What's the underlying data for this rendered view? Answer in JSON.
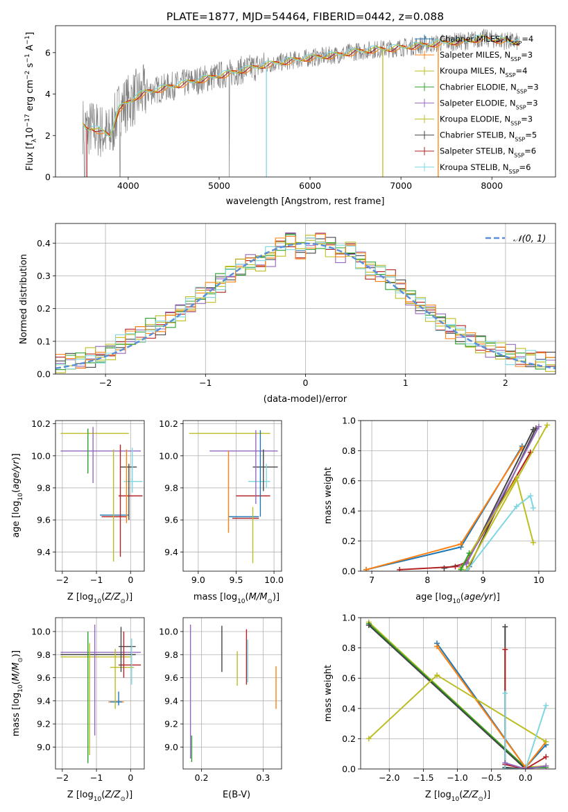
{
  "figure": {
    "title": "PLATE=1877, MJD=54464, FIBERID=0442, z=0.088"
  },
  "palette": {
    "fit_colors": [
      "#1f77b4",
      "#ff7f0e",
      "#bcbd22",
      "#2ca02c",
      "#9467bd",
      "#bcbd22",
      "#444444",
      "#b22222",
      "#7ed6e0"
    ],
    "normal_line": "#5b8fd9",
    "axis": "#000000",
    "grid": "#b0b0b0",
    "spectrum": "#808080"
  },
  "chart_data": [
    {
      "id": "spectrum",
      "type": "line",
      "xlabel": "wavelength [Angstrom, rest frame]",
      "ylabel": "Flux [f_λ 10^-17 erg cm^-2 s^-1 A^-1]",
      "xlim": [
        3200,
        8700
      ],
      "ylim": [
        0,
        7.3
      ],
      "xticks": [
        4000,
        5000,
        6000,
        7000,
        8000
      ],
      "yticks": [
        0,
        2,
        4,
        6
      ],
      "grid": false,
      "legend_position": "top-right",
      "continuum": {
        "x": [
          3500,
          3550,
          3600,
          3700,
          3800,
          3900,
          4000,
          4100,
          4200,
          4300,
          4500,
          4700,
          4900,
          5100,
          5300,
          5500,
          5700,
          5900,
          6100,
          6300,
          6500,
          6700,
          6900,
          7100,
          7300,
          7500,
          7700,
          7900,
          8100,
          8300
        ],
        "y": [
          2.5,
          2.3,
          2.4,
          2.2,
          2.0,
          3.3,
          3.6,
          3.9,
          4.1,
          4.2,
          4.4,
          4.6,
          4.8,
          5.0,
          5.2,
          5.4,
          5.55,
          5.7,
          5.8,
          5.9,
          6.05,
          6.15,
          6.2,
          6.3,
          6.4,
          6.5,
          6.55,
          6.7,
          6.6,
          6.5
        ]
      },
      "series": [
        {
          "name": "Chabrier MILES, N_SSP=4",
          "label_main": "Chabrier MILES, N",
          "label_sub": "SSP",
          "label_tail": "=4"
        },
        {
          "name": "Salpeter MILES, N_SSP=3",
          "label_main": "Salpeter MILES, N",
          "label_sub": "SSP",
          "label_tail": "=3"
        },
        {
          "name": "Kroupa MILES, N_SSP=4",
          "label_main": "Kroupa MILES, N",
          "label_sub": "SSP",
          "label_tail": "=4"
        },
        {
          "name": "Chabrier ELODIE, N_SSP=3",
          "label_main": "Chabrier ELODIE, N",
          "label_sub": "SSP",
          "label_tail": "=3"
        },
        {
          "name": "Salpeter ELODIE, N_SSP=3",
          "label_main": "Salpeter ELODIE, N",
          "label_sub": "SSP",
          "label_tail": "=3"
        },
        {
          "name": "Kroupa ELODIE, N_SSP=3",
          "label_main": "Kroupa ELODIE, N",
          "label_sub": "SSP",
          "label_tail": "=3"
        },
        {
          "name": "Chabrier STELIB, N_SSP=5",
          "label_main": "Chabrier STELIB, N",
          "label_sub": "SSP",
          "label_tail": "=5"
        },
        {
          "name": "Salpeter STELIB, N_SSP=6",
          "label_main": "Salpeter STELIB, N",
          "label_sub": "SSP",
          "label_tail": "=6"
        },
        {
          "name": "Kroupa STELIB, N_SSP=6",
          "label_main": "Kroupa STELIB, N",
          "label_sub": "SSP",
          "label_tail": "=6"
        }
      ]
    },
    {
      "id": "residuals",
      "type": "histogram",
      "xlabel": "(data-model)/error",
      "ylabel": "Normed distribution",
      "xlim": [
        -2.5,
        2.5
      ],
      "ylim": [
        0,
        0.46
      ],
      "xticks": [
        -2,
        -1,
        0,
        1,
        2
      ],
      "yticks": [
        0.0,
        0.1,
        0.2,
        0.3,
        0.4
      ],
      "grid": true,
      "legend_position": "top-right",
      "legend_label": "𝒩(0, 1)",
      "bin_edges_start": -2.5,
      "bin_width": 0.1,
      "bin_values": [
        0.03,
        0.035,
        0.04,
        0.05,
        0.055,
        0.07,
        0.09,
        0.11,
        0.12,
        0.14,
        0.15,
        0.17,
        0.19,
        0.21,
        0.24,
        0.25,
        0.28,
        0.31,
        0.33,
        0.34,
        0.34,
        0.36,
        0.39,
        0.41,
        0.38,
        0.4,
        0.41,
        0.39,
        0.37,
        0.38,
        0.35,
        0.32,
        0.31,
        0.29,
        0.26,
        0.23,
        0.21,
        0.19,
        0.16,
        0.14,
        0.12,
        0.1,
        0.09,
        0.08,
        0.07,
        0.06,
        0.05,
        0.045,
        0.04,
        0.035
      ]
    },
    {
      "id": "z_vs_age",
      "type": "scatter",
      "xlabel": "Z [log10(Z/Z⊙)]",
      "ylabel": "age [log10(age/yr)]",
      "xlim": [
        -2.2,
        0.4
      ],
      "ylim": [
        9.28,
        10.22
      ],
      "xticks": [
        -2,
        -1,
        0
      ],
      "yticks": [
        9.4,
        9.6,
        9.8,
        10.0,
        10.2
      ],
      "grid": true,
      "hbars": [
        {
          "x1": -2.05,
          "x2": -0.05,
          "y": 10.14,
          "c": 2
        },
        {
          "x1": -2.05,
          "x2": 0.3,
          "y": 10.03,
          "c": 4
        },
        {
          "x1": -0.9,
          "x2": -0.05,
          "y": 9.63,
          "c": 0
        },
        {
          "x1": -0.85,
          "x2": -0.1,
          "y": 9.62,
          "c": 7
        },
        {
          "x1": -0.3,
          "x2": 0.18,
          "y": 9.93,
          "c": 6
        },
        {
          "x1": -0.2,
          "x2": 0.35,
          "y": 9.84,
          "c": 8
        },
        {
          "x1": -0.35,
          "x2": 0.35,
          "y": 9.75,
          "c": 7
        }
      ],
      "vbars": [
        {
          "x": -1.25,
          "y1": 9.89,
          "y2": 10.17,
          "c": 3
        },
        {
          "x": -1.1,
          "y1": 9.83,
          "y2": 10.18,
          "c": 4
        },
        {
          "x": -0.5,
          "y1": 9.34,
          "y2": 10.04,
          "c": 5
        },
        {
          "x": -0.3,
          "y1": 9.37,
          "y2": 10.07,
          "c": 7
        },
        {
          "x": -0.12,
          "y1": 9.58,
          "y2": 10.04,
          "c": 1
        },
        {
          "x": 0.05,
          "y1": 9.77,
          "y2": 10.05,
          "c": 8
        },
        {
          "x": -0.05,
          "y1": 9.6,
          "y2": 9.95,
          "c": 6
        }
      ]
    },
    {
      "id": "mass_vs_age",
      "type": "scatter",
      "xlabel": "mass [log10(M/M⊙)]",
      "ylabel": "",
      "xlim": [
        8.8,
        10.1
      ],
      "ylim": [
        9.28,
        10.22
      ],
      "xticks": [
        9.0,
        9.5,
        10.0
      ],
      "yticks": [
        9.4,
        9.6,
        9.8,
        10.0,
        10.2
      ],
      "grid": true,
      "hbars": [
        {
          "x1": 8.88,
          "x2": 9.95,
          "y": 10.14,
          "c": 2
        },
        {
          "x1": 9.15,
          "x2": 10.05,
          "y": 10.03,
          "c": 4
        },
        {
          "x1": 9.4,
          "x2": 9.8,
          "y": 9.62,
          "c": 0
        },
        {
          "x1": 9.45,
          "x2": 9.8,
          "y": 9.61,
          "c": 7
        },
        {
          "x1": 9.72,
          "x2": 10.05,
          "y": 9.93,
          "c": 6
        },
        {
          "x1": 9.66,
          "x2": 9.95,
          "y": 9.84,
          "c": 8
        },
        {
          "x1": 9.5,
          "x2": 9.95,
          "y": 9.75,
          "c": 7
        }
      ],
      "vbars": [
        {
          "x": 9.4,
          "y1": 9.52,
          "y2": 10.03,
          "c": 1
        },
        {
          "x": 9.72,
          "y1": 9.33,
          "y2": 9.68,
          "c": 5
        },
        {
          "x": 9.76,
          "y1": 9.7,
          "y2": 10.16,
          "c": 4
        },
        {
          "x": 9.82,
          "y1": 9.62,
          "y2": 10.16,
          "c": 0
        },
        {
          "x": 9.86,
          "y1": 9.78,
          "y2": 10.04,
          "c": 6
        },
        {
          "x": 9.9,
          "y1": 9.8,
          "y2": 9.95,
          "c": 8
        }
      ]
    },
    {
      "id": "age_vs_weight",
      "type": "line",
      "xlabel": "age [log10(age/yr)]",
      "ylabel": "mass weight",
      "xlim": [
        6.8,
        10.3
      ],
      "ylim": [
        0,
        1.0
      ],
      "xticks": [
        7,
        8,
        9,
        10
      ],
      "yticks": [
        0.0,
        0.2,
        0.4,
        0.6,
        0.8,
        1.0
      ],
      "grid": true,
      "lines": [
        {
          "c": 0,
          "x": [
            6.9,
            8.6,
            9.7
          ],
          "y": [
            0.01,
            0.16,
            0.83
          ]
        },
        {
          "c": 1,
          "x": [
            6.9,
            8.6,
            9.7
          ],
          "y": [
            0.01,
            0.18,
            0.82
          ]
        },
        {
          "c": 6,
          "x": [
            8.3,
            8.7,
            9.9
          ],
          "y": [
            0.02,
            0.05,
            0.94
          ]
        },
        {
          "c": 6,
          "x": [
            8.7,
            8.75,
            9.95
          ],
          "y": [
            0.0,
            0.03,
            0.95
          ]
        },
        {
          "c": 7,
          "x": [
            7.5,
            8.5,
            8.7,
            9.85
          ],
          "y": [
            0.01,
            0.03,
            0.06,
            0.79
          ]
        },
        {
          "c": 4,
          "x": [
            8.6,
            8.7,
            10.0
          ],
          "y": [
            0.03,
            0.05,
            0.96
          ]
        },
        {
          "c": 2,
          "x": [
            8.7,
            10.15
          ],
          "y": [
            0.01,
            0.97
          ]
        },
        {
          "c": 5,
          "x": [
            8.6,
            9.6,
            9.9
          ],
          "y": [
            0.02,
            0.62,
            0.19
          ]
        },
        {
          "c": 8,
          "x": [
            8.7,
            9.6,
            9.85,
            9.9
          ],
          "y": [
            0.0,
            0.43,
            0.5,
            0.42
          ]
        },
        {
          "c": 3,
          "x": [
            8.6,
            8.75
          ],
          "y": [
            0.01,
            0.12
          ]
        }
      ]
    },
    {
      "id": "z_vs_mass",
      "type": "scatter",
      "xlabel": "Z [log10(Z/Z⊙)]",
      "ylabel": "mass [log10(M/M⊙)]",
      "xlim": [
        -2.2,
        0.4
      ],
      "ylim": [
        8.81,
        10.12
      ],
      "xticks": [
        -2,
        -1,
        0
      ],
      "yticks": [
        9.0,
        9.2,
        9.4,
        9.6,
        9.8,
        10.0
      ],
      "grid": true,
      "hbars": [
        {
          "x1": -2.05,
          "x2": 0.3,
          "y": 9.82,
          "c": 4
        },
        {
          "x1": -2.05,
          "x2": 0.15,
          "y": 9.8,
          "c": 6
        },
        {
          "x1": -2.05,
          "x2": 0.0,
          "y": 9.78,
          "c": 2
        },
        {
          "x1": -0.65,
          "x2": -0.2,
          "y": 9.39,
          "c": 1
        },
        {
          "x1": -0.6,
          "x2": -0.25,
          "y": 9.39,
          "c": 0
        },
        {
          "x1": -0.6,
          "x2": 0.1,
          "y": 9.69,
          "c": 5
        },
        {
          "x1": -0.35,
          "x2": 0.3,
          "y": 9.71,
          "c": 7
        },
        {
          "x1": -0.35,
          "x2": 0.15,
          "y": 9.87,
          "c": 6
        }
      ],
      "vbars": [
        {
          "x": -1.25,
          "y1": 8.86,
          "y2": 10.0,
          "c": 3
        },
        {
          "x": -1.2,
          "y1": 8.93,
          "y2": 9.9,
          "c": 2
        },
        {
          "x": -1.05,
          "y1": 9.1,
          "y2": 10.06,
          "c": 4
        },
        {
          "x": -0.45,
          "y1": 9.33,
          "y2": 9.85,
          "c": 5
        },
        {
          "x": -0.35,
          "y1": 9.36,
          "y2": 9.48,
          "c": 0
        },
        {
          "x": -0.28,
          "y1": 9.65,
          "y2": 10.04,
          "c": 6
        },
        {
          "x": -0.2,
          "y1": 9.6,
          "y2": 10.0,
          "c": 7
        },
        {
          "x": 0.03,
          "y1": 9.54,
          "y2": 9.94,
          "c": 8
        }
      ]
    },
    {
      "id": "ebv_vs_mass",
      "type": "scatter",
      "xlabel": "E(B-V)",
      "ylabel": "",
      "xlim": [
        0.17,
        0.33
      ],
      "ylim": [
        8.81,
        10.12
      ],
      "xticks": [
        0.2,
        0.3
      ],
      "yticks": [
        9.0,
        9.2,
        9.4,
        9.6,
        9.8,
        10.0
      ],
      "grid": true,
      "vbars": [
        {
          "x": 0.182,
          "y1": 8.9,
          "y2": 10.06,
          "c": 4
        },
        {
          "x": 0.184,
          "y1": 8.87,
          "y2": 9.1,
          "c": 3
        },
        {
          "x": 0.233,
          "y1": 9.65,
          "y2": 10.05,
          "c": 6
        },
        {
          "x": 0.258,
          "y1": 9.53,
          "y2": 9.83,
          "c": 5
        },
        {
          "x": 0.273,
          "y1": 9.54,
          "y2": 10.02,
          "c": 7
        },
        {
          "x": 0.275,
          "y1": 9.56,
          "y2": 9.93,
          "c": 8
        },
        {
          "x": 0.321,
          "y1": 9.33,
          "y2": 9.7,
          "c": 1
        }
      ]
    },
    {
      "id": "z_vs_weight",
      "type": "line",
      "xlabel": "Z [log10(Z/Z⊙)]",
      "ylabel": "mass weight",
      "xlim": [
        -2.42,
        0.44
      ],
      "ylim": [
        0,
        1.0
      ],
      "xticks": [
        -2.0,
        -1.5,
        -1.0,
        -0.5,
        0.0
      ],
      "yticks": [
        0.0,
        0.2,
        0.4,
        0.6,
        0.8,
        1.0
      ],
      "grid": true,
      "lines": [
        {
          "c": 2,
          "x": [
            -2.3,
            0.0,
            0.3
          ],
          "y": [
            0.97,
            0.01,
            0.02
          ]
        },
        {
          "c": 3,
          "x": [
            -2.3,
            0.0,
            0.3
          ],
          "y": [
            0.96,
            0.01,
            0.01
          ]
        },
        {
          "c": 6,
          "x": [
            -2.3,
            0.0
          ],
          "y": [
            0.95,
            0.0
          ]
        },
        {
          "c": 0,
          "x": [
            -1.3,
            0.0,
            0.3
          ],
          "y": [
            0.83,
            0.01,
            0.16
          ]
        },
        {
          "c": 1,
          "x": [
            -1.3,
            0.0,
            0.3
          ],
          "y": [
            0.81,
            0.01,
            0.18
          ]
        },
        {
          "c": 5,
          "x": [
            -2.3,
            -1.3,
            0.3
          ],
          "y": [
            0.2,
            0.62,
            0.18
          ]
        },
        {
          "c": 6,
          "x": [
            -0.3,
            -0.3,
            0.0
          ],
          "y": [
            0.94,
            0.01,
            0.0
          ]
        },
        {
          "c": 7,
          "x": [
            -0.3,
            -0.3,
            0.0,
            0.3
          ],
          "y": [
            0.79,
            0.03,
            0.0,
            0.08
          ]
        },
        {
          "c": 8,
          "x": [
            -0.3,
            -0.3,
            0.0,
            0.3
          ],
          "y": [
            0.5,
            0.0,
            0.0,
            0.42
          ]
        },
        {
          "c": 4,
          "x": [
            -0.3,
            0.0,
            0.3
          ],
          "y": [
            0.04,
            0.0,
            0.02
          ]
        }
      ]
    }
  ]
}
